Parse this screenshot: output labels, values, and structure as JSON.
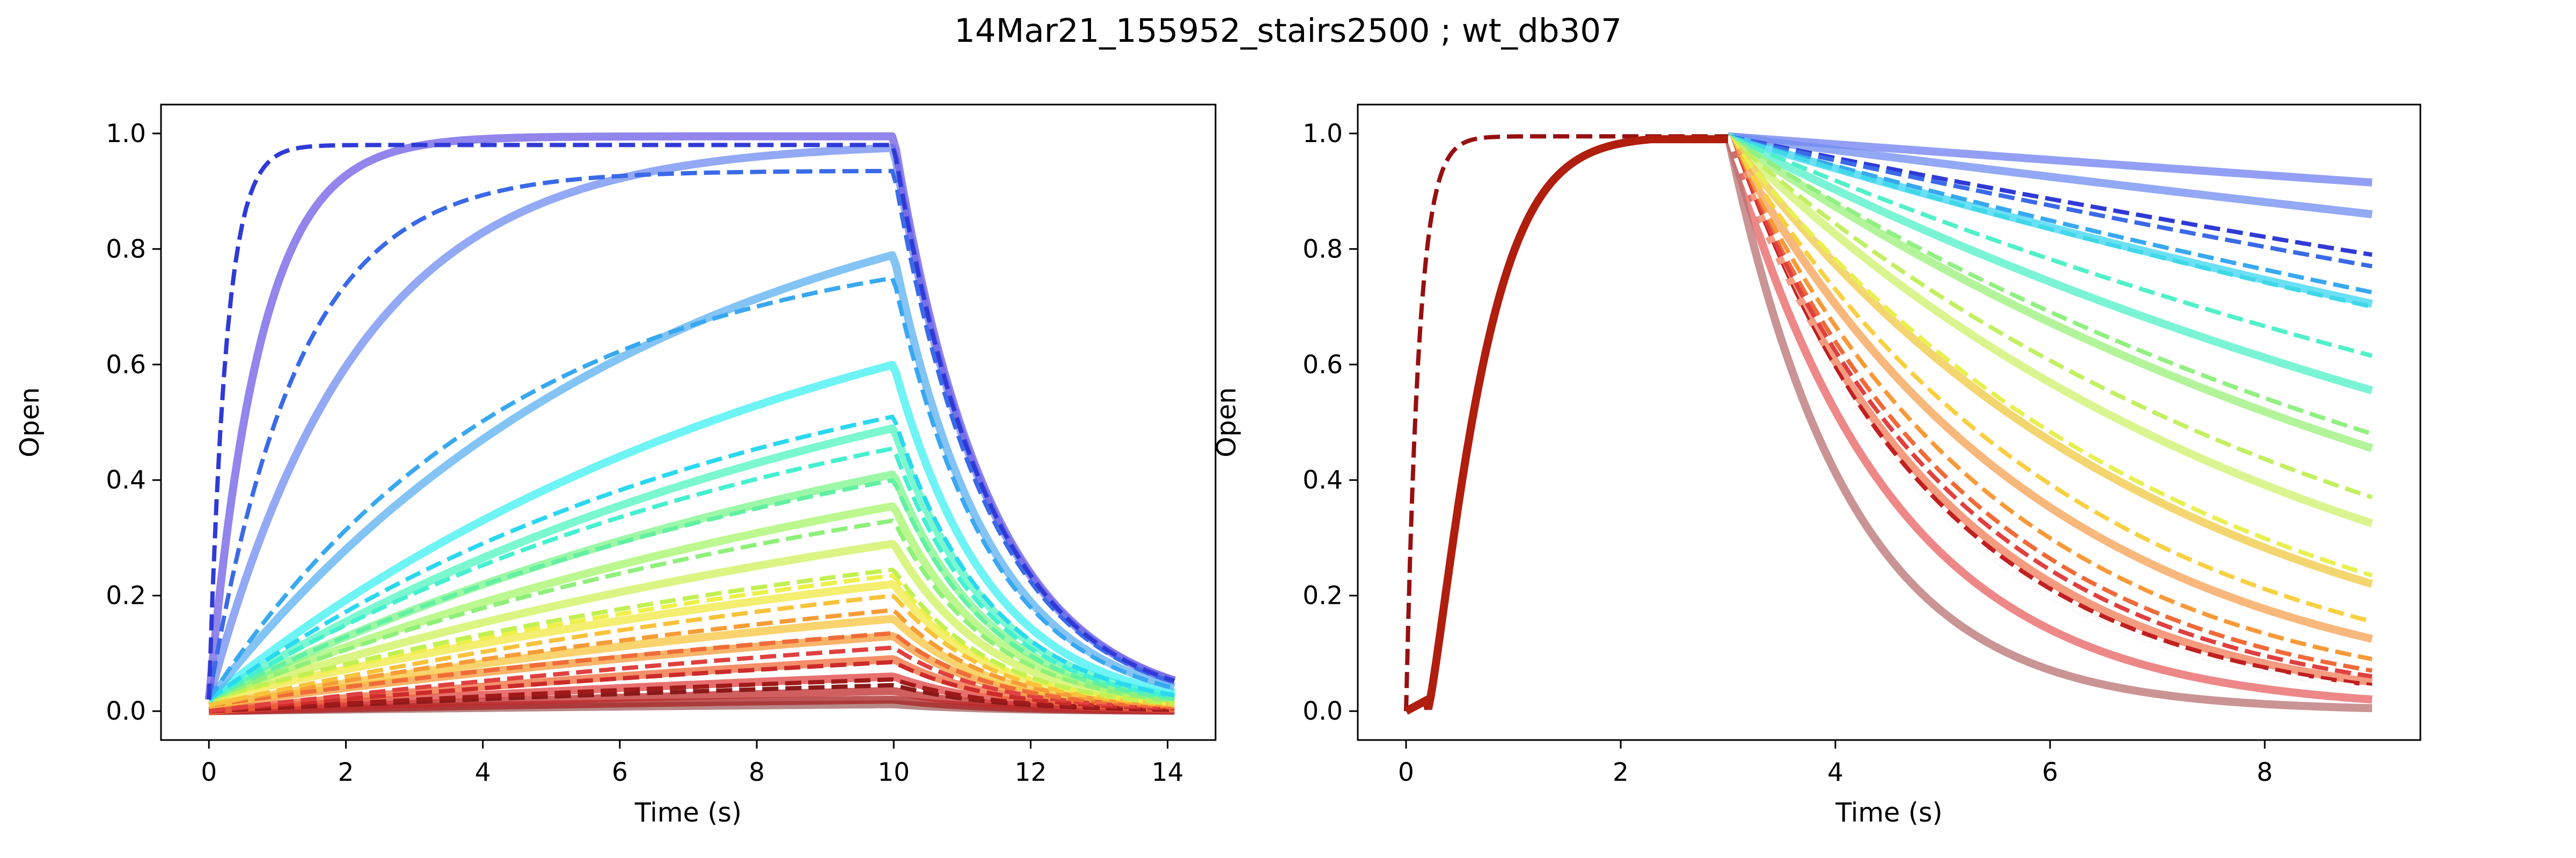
{
  "figure": {
    "suptitle": "14Mar21_155952_stairs2500 ; wt_db307"
  },
  "chart_data": [
    {
      "type": "line",
      "title": "",
      "xlabel": "Time (s)",
      "ylabel": "Open",
      "xlim": [
        -0.7,
        14.7
      ],
      "ylim": [
        -0.05,
        1.05
      ],
      "xticks": [
        "0",
        "2",
        "4",
        "6",
        "8",
        "10",
        "12",
        "14"
      ],
      "yticks": [
        "0.0",
        "0.2",
        "0.4",
        "0.6",
        "0.8",
        "1.0"
      ],
      "grid": false,
      "legend": "none",
      "model": {
        "kind": "activation-step",
        "step_on": 0.0,
        "step_off": 10.0,
        "t_end": 14.1,
        "deactivation_tau_s": 1.4,
        "traces_description": "simulated (solid, thick, translucent) and fitted (dashed) open probability per voltage step",
        "solid": [
          {
            "color": "#6d5ce6",
            "plateau": 0.995,
            "tau": 0.75,
            "start": 0.02
          },
          {
            "color": "#6f8cf2",
            "plateau": 0.975,
            "tau": 2.2,
            "start": 0.02
          },
          {
            "color": "#5ab0f2",
            "plateau": 0.79,
            "tau": 6.5,
            "start": 0.02
          },
          {
            "color": "#3ef0f0",
            "plateau": 0.6,
            "tau": 9.0,
            "start": 0.02
          },
          {
            "color": "#4ff5c0",
            "plateau": 0.49,
            "tau": 10.0,
            "start": 0.02
          },
          {
            "color": "#7bf589",
            "plateau": 0.41,
            "tau": 11.0,
            "start": 0.02
          },
          {
            "color": "#a6f56a",
            "plateau": 0.355,
            "tau": 12.0,
            "start": 0.02
          },
          {
            "color": "#cdf25a",
            "plateau": 0.29,
            "tau": 13.0,
            "start": 0.02
          },
          {
            "color": "#f0e842",
            "plateau": 0.22,
            "tau": 14.0,
            "start": 0.02
          },
          {
            "color": "#f7c43c",
            "plateau": 0.16,
            "tau": 15.0,
            "start": 0.01
          },
          {
            "color": "#f79a36",
            "plateau": 0.13,
            "tau": 16.0,
            "start": 0.01
          },
          {
            "color": "#f06a38",
            "plateau": 0.09,
            "tau": 17.0,
            "start": 0.0
          },
          {
            "color": "#e04040",
            "plateau": 0.06,
            "tau": 18.0,
            "start": 0.0
          },
          {
            "color": "#c02a2a",
            "plateau": 0.035,
            "tau": 19.0,
            "start": 0.0
          },
          {
            "color": "#a82020",
            "plateau": 0.02,
            "tau": 20.0,
            "start": 0.0
          },
          {
            "color": "#a06060",
            "plateau": 0.012,
            "tau": 20.0,
            "start": 0.0
          }
        ],
        "dashed": [
          {
            "color": "#2f3ad6",
            "plateau": 0.98,
            "tau": 0.25,
            "start": 0.02
          },
          {
            "color": "#3a6ae8",
            "plateau": 0.935,
            "tau": 1.3,
            "start": 0.02
          },
          {
            "color": "#38a8f0",
            "plateau": 0.75,
            "tau": 4.5,
            "start": 0.02
          },
          {
            "color": "#2ad8f0",
            "plateau": 0.51,
            "tau": 8.0,
            "start": 0.02
          },
          {
            "color": "#44f0d0",
            "plateau": 0.455,
            "tau": 9.0,
            "start": 0.02
          },
          {
            "color": "#62f0a2",
            "plateau": 0.4,
            "tau": 10.0,
            "start": 0.02
          },
          {
            "color": "#8ef07a",
            "plateau": 0.33,
            "tau": 11.0,
            "start": 0.02
          },
          {
            "color": "#c2f052",
            "plateau": 0.245,
            "tau": 12.0,
            "start": 0.02
          },
          {
            "color": "#eef04a",
            "plateau": 0.235,
            "tau": 13.0,
            "start": 0.02
          },
          {
            "color": "#f8c23a",
            "plateau": 0.2,
            "tau": 14.0,
            "start": 0.01
          },
          {
            "color": "#f69c36",
            "plateau": 0.175,
            "tau": 15.0,
            "start": 0.01
          },
          {
            "color": "#f06c38",
            "plateau": 0.135,
            "tau": 16.0,
            "start": 0.01
          },
          {
            "color": "#e04040",
            "plateau": 0.11,
            "tau": 17.0,
            "start": 0.0
          },
          {
            "color": "#cc2b2b",
            "plateau": 0.085,
            "tau": 18.0,
            "start": 0.0
          },
          {
            "color": "#a01a1a",
            "plateau": 0.055,
            "tau": 19.0,
            "start": 0.0
          },
          {
            "color": "#8a1a1a",
            "plateau": 0.045,
            "tau": 20.0,
            "start": 0.0
          }
        ]
      }
    },
    {
      "type": "line",
      "title": "",
      "xlabel": "Time (s)",
      "ylabel": "Open",
      "xlim": [
        -0.45,
        9.45
      ],
      "ylim": [
        -0.05,
        1.05
      ],
      "xticks": [
        "0",
        "2",
        "4",
        "6",
        "8"
      ],
      "yticks": [
        "0.0",
        "0.2",
        "0.4",
        "0.6",
        "0.8",
        "1.0"
      ],
      "grid": false,
      "legend": "none",
      "model": {
        "kind": "deactivation-step",
        "activation_end": 3.0,
        "t_end": 9.0,
        "activation_solid": {
          "color": "#b01e0e",
          "tau": 0.55,
          "delay": 0.2
        },
        "activation_dashed": {
          "color": "#961010",
          "tau": 0.12
        },
        "traces_description": "tail currents after a common activating step; solid simulated, dashed fitted",
        "solid": [
          {
            "color": "#6f7ff0",
            "final": 0.915
          },
          {
            "color": "#6f8cf2",
            "final": 0.86
          },
          {
            "color": "#3ad6f2",
            "final": 0.705
          },
          {
            "color": "#4ff0c8",
            "final": 0.555
          },
          {
            "color": "#9af07a",
            "final": 0.455
          },
          {
            "color": "#cdf26a",
            "final": 0.325
          },
          {
            "color": "#f0c840",
            "final": 0.22
          },
          {
            "color": "#f5a050",
            "final": 0.125
          },
          {
            "color": "#f07a55",
            "final": 0.05
          },
          {
            "color": "#e86060",
            "final": 0.02
          },
          {
            "color": "#b87070",
            "final": 0.005
          }
        ],
        "dashed": [
          {
            "color": "#2f3ad6",
            "final": 0.79
          },
          {
            "color": "#3a6ae8",
            "final": 0.77
          },
          {
            "color": "#38a8f0",
            "final": 0.725
          },
          {
            "color": "#40d8e8",
            "final": 0.7
          },
          {
            "color": "#50f0c8",
            "final": 0.615
          },
          {
            "color": "#90f080",
            "final": 0.48
          },
          {
            "color": "#c2f060",
            "final": 0.37
          },
          {
            "color": "#e8f050",
            "final": 0.235
          },
          {
            "color": "#f8d040",
            "final": 0.155
          },
          {
            "color": "#f89a38",
            "final": 0.09
          },
          {
            "color": "#f06a38",
            "final": 0.07
          },
          {
            "color": "#e04040",
            "final": 0.06
          },
          {
            "color": "#c02020",
            "final": 0.045
          },
          {
            "color": "#901010",
            "final": 0.04
          },
          {
            "color": "#ffffff",
            "final": 0.04
          }
        ]
      }
    }
  ]
}
